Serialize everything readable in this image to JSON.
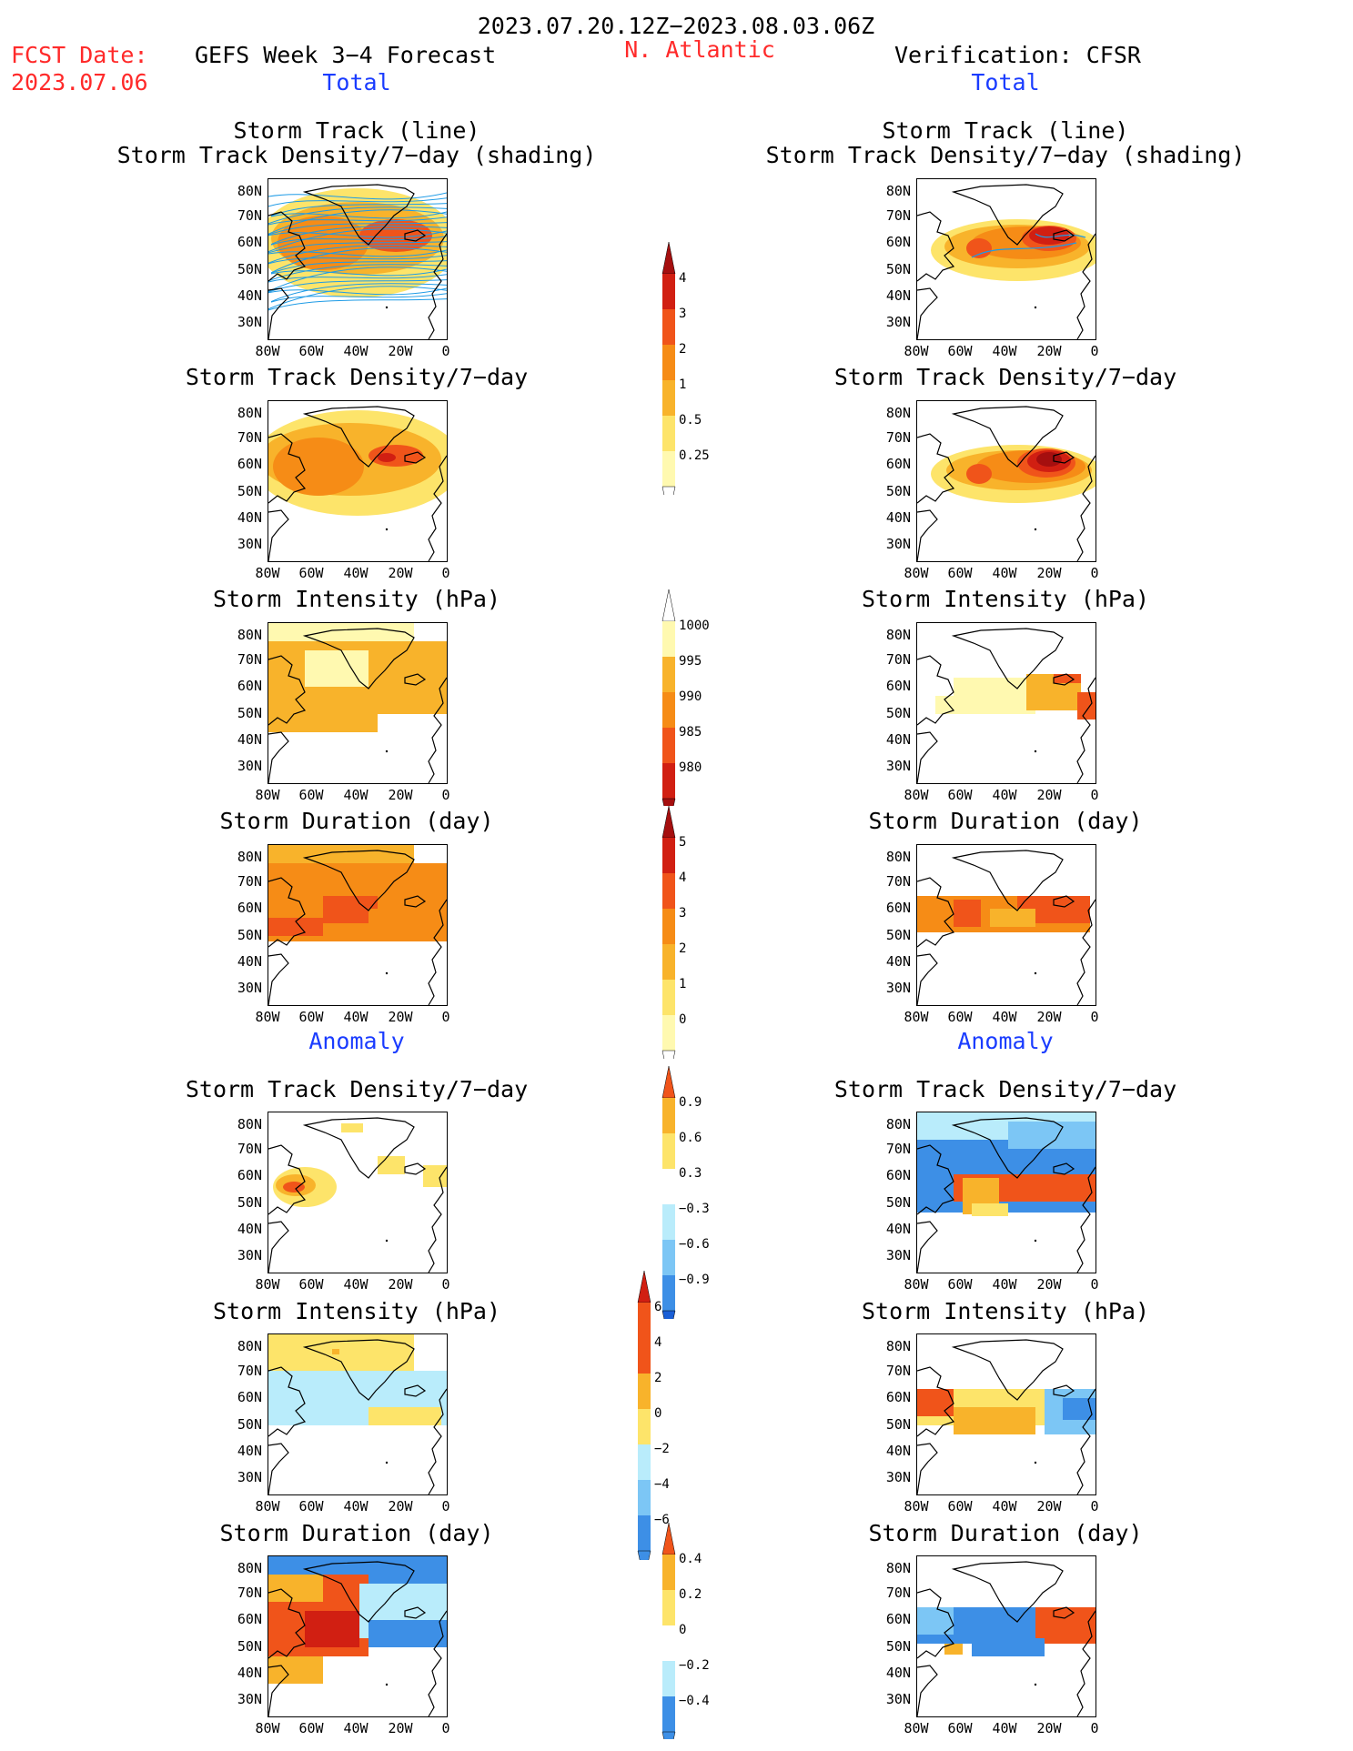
{
  "header": {
    "date_range": "2023.07.20.12Z−2023.08.03.06Z",
    "fcst_label": "FCST Date:",
    "fcst_date": "2023.07.06",
    "model_title": "GEFS Week 3−4 Forecast",
    "region": "N. Atlantic",
    "verification_title": "Verification: CFSR"
  },
  "sections": {
    "total_left": "Total",
    "total_right": "Total",
    "anomaly_left": "Anomaly",
    "anomaly_right": "Anomaly"
  },
  "panel_titles": {
    "track_line": "Storm Track (line)",
    "track_shading": "Storm Track Density/7−day (shading)",
    "density": "Storm Track Density/7−day",
    "intensity": "Storm Intensity (hPa)",
    "duration": "Storm Duration (day)"
  },
  "axes": {
    "lat_labels": [
      "80N",
      "70N",
      "60N",
      "50N",
      "40N",
      "30N"
    ],
    "lon_labels": [
      "80W",
      "60W",
      "40W",
      "20W",
      "0"
    ]
  },
  "colorbars": {
    "density_total": [
      "4",
      "3",
      "2",
      "1",
      "0.5",
      "0.25"
    ],
    "intensity_total": [
      "1000",
      "995",
      "990",
      "985",
      "980"
    ],
    "duration_total": [
      "5",
      "4",
      "3",
      "2",
      "1",
      "0"
    ],
    "density_anom": [
      "0.9",
      "0.6",
      "0.3",
      "−0.3",
      "−0.6",
      "−0.9"
    ],
    "intensity_anom": [
      "6",
      "4",
      "2",
      "0",
      "−2",
      "−4",
      "−6"
    ],
    "duration_anom": [
      "0.4",
      "0.2",
      "0",
      "−0.2",
      "−0.4"
    ]
  },
  "colors": {
    "title_red": "#ff2a2a",
    "section_blue": "#1a3cff",
    "track_line": "#1e9be6"
  }
}
